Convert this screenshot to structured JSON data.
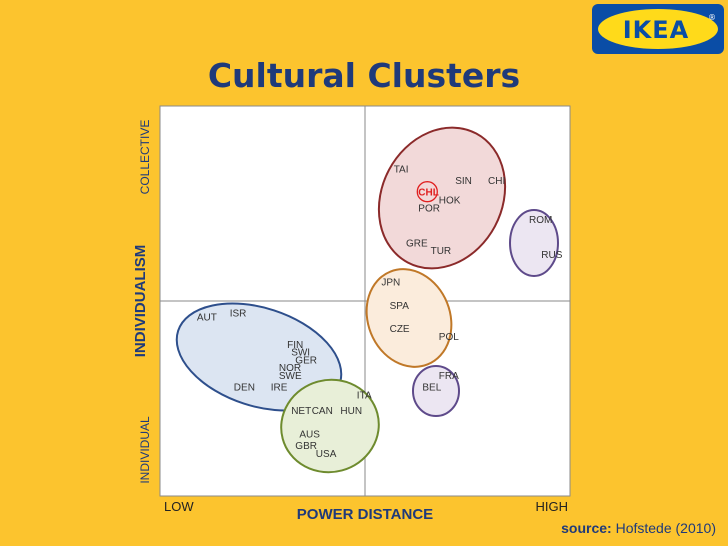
{
  "slide": {
    "title": "Cultural Clusters",
    "source_label": "source:",
    "source_text": "Hofstede (2010)",
    "logo_text": "IKEA",
    "logo_mark": "®"
  },
  "chart_data": {
    "type": "scatter",
    "title": "Cultural Clusters",
    "xlabel": "POWER DISTANCE",
    "ylabel": "INDIVIDUALISM",
    "x_tick_labels": [
      "LOW",
      "HIGH"
    ],
    "y_tick_labels": [
      "INDIVIDUAL",
      "COLLECTIVE"
    ],
    "grid": "quadrant",
    "highlight_color": "#E02020",
    "points": [
      {
        "label": "TAI",
        "x": 57,
        "y": 83
      },
      {
        "label": "SIN",
        "x": 72,
        "y": 80
      },
      {
        "label": "CHI",
        "x": 80,
        "y": 80
      },
      {
        "label": "CHL",
        "x": 63,
        "y": 77,
        "highlight": true
      },
      {
        "label": "HOK",
        "x": 68,
        "y": 75
      },
      {
        "label": "POR",
        "x": 63,
        "y": 73
      },
      {
        "label": "GRE",
        "x": 60,
        "y": 64
      },
      {
        "label": "TUR",
        "x": 66,
        "y": 62
      },
      {
        "label": "ROM",
        "x": 90,
        "y": 70
      },
      {
        "label": "RUS",
        "x": 93,
        "y": 61
      },
      {
        "label": "JPN",
        "x": 54,
        "y": 54
      },
      {
        "label": "SPA",
        "x": 56,
        "y": 48
      },
      {
        "label": "CZE",
        "x": 56,
        "y": 42
      },
      {
        "label": "POL",
        "x": 68,
        "y": 40
      },
      {
        "label": "FRA",
        "x": 68,
        "y": 30
      },
      {
        "label": "BEL",
        "x": 64,
        "y": 27
      },
      {
        "label": "ITA",
        "x": 48,
        "y": 25
      },
      {
        "label": "AUT",
        "x": 9,
        "y": 45
      },
      {
        "label": "ISR",
        "x": 17,
        "y": 46
      },
      {
        "label": "FIN",
        "x": 31,
        "y": 38
      },
      {
        "label": "SWI",
        "x": 32,
        "y": 36
      },
      {
        "label": "GER",
        "x": 33,
        "y": 34
      },
      {
        "label": "NOR",
        "x": 29,
        "y": 32
      },
      {
        "label": "SWE",
        "x": 29,
        "y": 30
      },
      {
        "label": "DEN",
        "x": 18,
        "y": 27
      },
      {
        "label": "IRE",
        "x": 27,
        "y": 27
      },
      {
        "label": "NET",
        "x": 32,
        "y": 21
      },
      {
        "label": "CAN",
        "x": 37,
        "y": 21
      },
      {
        "label": "HUN",
        "x": 44,
        "y": 21
      },
      {
        "label": "AUS",
        "x": 34,
        "y": 15
      },
      {
        "label": "GBR",
        "x": 33,
        "y": 12
      },
      {
        "label": "USA",
        "x": 38,
        "y": 10
      }
    ],
    "clusters": [
      {
        "color": "#8B2A2A",
        "fill": "#F2D9D9"
      },
      {
        "color": "#5E4A8A",
        "fill": "#ECE6F2"
      },
      {
        "color": "#C07828",
        "fill": "#FBECDC"
      },
      {
        "color": "#5E4A8A",
        "fill": "#ECE6F2"
      },
      {
        "color": "#2E4F8C",
        "fill": "#DCE5F2"
      },
      {
        "color": "#6E8B2E",
        "fill": "#E8EFD8"
      }
    ]
  }
}
